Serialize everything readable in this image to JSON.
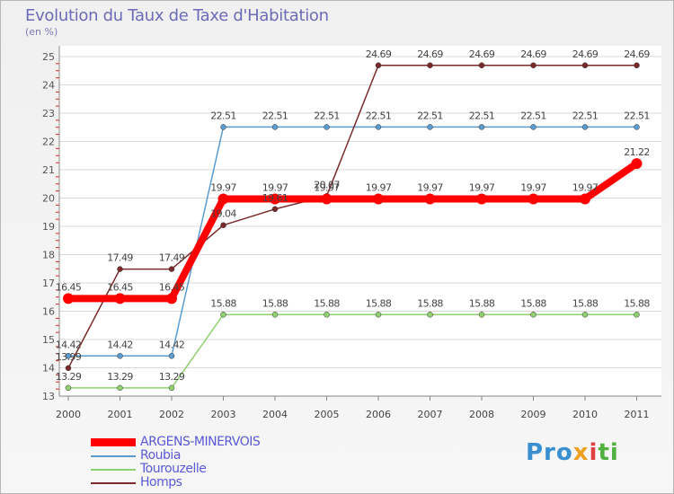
{
  "chart": {
    "title": "Evolution du Taux de Taxe d'Habitation",
    "unit_label": "(en %)"
  },
  "chart_data": {
    "type": "line",
    "title": "Evolution du Taux de Taxe d'Habitation",
    "ylabel": "(en %)",
    "xlabel": "",
    "x": [
      "2000",
      "2001",
      "2002",
      "2003",
      "2004",
      "2005",
      "2006",
      "2007",
      "2008",
      "2009",
      "2010",
      "2011"
    ],
    "ylim": [
      13,
      25
    ],
    "yticks": [
      13,
      14,
      15,
      16,
      17,
      18,
      19,
      20,
      21,
      22,
      23,
      24,
      25
    ],
    "series": [
      {
        "name": "Roubia",
        "color": "#5a9bd0",
        "values": [
          14.42,
          14.42,
          14.42,
          22.51,
          22.51,
          22.51,
          22.51,
          22.51,
          22.51,
          22.51,
          22.51,
          22.51
        ],
        "labels": [
          "14.42",
          "14.42",
          "14.42",
          "22.51",
          "22.51",
          "22.51",
          "22.51",
          "22.51",
          "22.51",
          "22.51",
          "22.51",
          "22.51"
        ]
      },
      {
        "name": "Tourouzelle",
        "color": "#90d070",
        "values": [
          13.29,
          13.29,
          13.29,
          15.88,
          15.88,
          15.88,
          15.88,
          15.88,
          15.88,
          15.88,
          15.88,
          15.88
        ],
        "labels": [
          "13.29",
          "13.29",
          "13.29",
          "15.88",
          "15.88",
          "15.88",
          "15.88",
          "15.88",
          "15.88",
          "15.88",
          "15.88",
          "15.88"
        ]
      },
      {
        "name": "Homps",
        "color": "#7a2a2a",
        "values": [
          13.99,
          17.49,
          17.49,
          19.04,
          19.61,
          20.07,
          24.69,
          24.69,
          24.69,
          24.69,
          24.69,
          24.69
        ],
        "labels": [
          "13.99",
          "17.49",
          "17.49",
          "19.04",
          "19.61",
          "20.07",
          "24.69",
          "24.69",
          "24.69",
          "24.69",
          "24.69",
          "24.69"
        ]
      },
      {
        "name": "ARGENS-MINERVOIS",
        "color": "#ff0000",
        "values": [
          16.45,
          16.45,
          16.45,
          19.97,
          19.97,
          19.97,
          19.97,
          19.97,
          19.97,
          19.97,
          19.97,
          21.22
        ],
        "labels": [
          "16.45",
          "16.45",
          "16.45",
          "19.97",
          "19.97",
          "19.97",
          "19.97",
          "19.97",
          "19.97",
          "19.97",
          "19.97",
          "21.22"
        ]
      }
    ],
    "legend": [
      {
        "name": "ARGENS-MINERVOIS",
        "color": "#ff0000"
      },
      {
        "name": "Roubia",
        "color": "#5a9bd0"
      },
      {
        "name": "Tourouzelle",
        "color": "#90d070"
      },
      {
        "name": "Homps",
        "color": "#7a2a2a"
      }
    ],
    "legend_position": "bottom-left"
  },
  "logo": {
    "part1": "Pro",
    "part2": "x",
    "part3": "i",
    "part4": "ti"
  }
}
